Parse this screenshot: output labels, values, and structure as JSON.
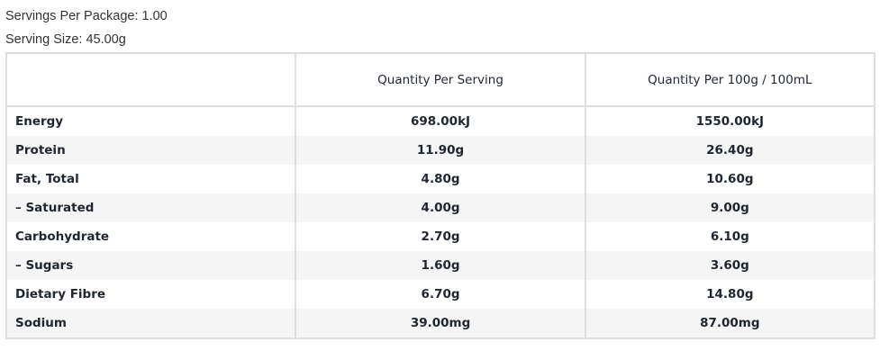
{
  "servings_per_package": "Servings Per Package: 1.00",
  "serving_size": "Serving Size: 45.00g",
  "table": {
    "headers": [
      "",
      "Quantity Per Serving",
      "Quantity Per 100g / 100mL"
    ],
    "rows": [
      {
        "name": "Energy",
        "per_serving": "698.00kJ",
        "per_100": "1550.00kJ"
      },
      {
        "name": "Protein",
        "per_serving": "11.90g",
        "per_100": "26.40g"
      },
      {
        "name": "Fat, Total",
        "per_serving": "4.80g",
        "per_100": "10.60g"
      },
      {
        "name": "– Saturated",
        "per_serving": "4.00g",
        "per_100": "9.00g"
      },
      {
        "name": "Carbohydrate",
        "per_serving": "2.70g",
        "per_100": "6.10g"
      },
      {
        "name": "– Sugars",
        "per_serving": "1.60g",
        "per_100": "3.60g"
      },
      {
        "name": "Dietary Fibre",
        "per_serving": "6.70g",
        "per_100": "14.80g"
      },
      {
        "name": "Sodium",
        "per_serving": "39.00mg",
        "per_100": "87.00mg"
      }
    ]
  }
}
